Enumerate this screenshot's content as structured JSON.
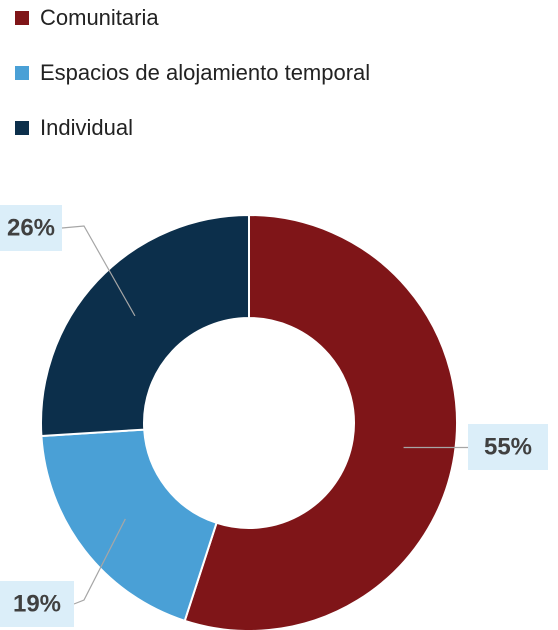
{
  "chart_data": {
    "type": "donut",
    "categories": [
      "Comunitaria",
      "Espacios de alojamiento temporal",
      "Individual"
    ],
    "values": [
      55,
      19,
      26
    ],
    "value_labels": [
      "55%",
      "19%",
      "26%"
    ],
    "colors": [
      "#7f1518",
      "#4aa0d6",
      "#0c2f4b"
    ],
    "legend": "top-left"
  }
}
